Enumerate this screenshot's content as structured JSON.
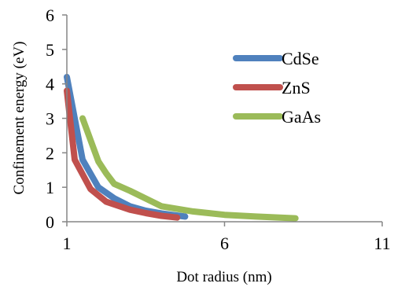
{
  "chart_data": {
    "type": "line",
    "xlabel": "Dot radius (nm)",
    "ylabel": "Confinement energy (eV)",
    "xlim": [
      1,
      11
    ],
    "ylim": [
      0,
      6
    ],
    "xticks": [
      1,
      6,
      11
    ],
    "yticks": [
      0,
      1,
      2,
      3,
      4,
      5,
      6
    ],
    "grid": false,
    "legend_position": "top-right",
    "series": [
      {
        "name": "CdSe",
        "color": "#4f81bd",
        "points": [
          [
            1.0,
            4.2
          ],
          [
            1.5,
            1.8
          ],
          [
            2.0,
            1.0
          ],
          [
            2.5,
            0.68
          ],
          [
            3.0,
            0.45
          ],
          [
            3.5,
            0.32
          ],
          [
            4.0,
            0.24
          ],
          [
            4.5,
            0.18
          ],
          [
            4.75,
            0.15
          ]
        ]
      },
      {
        "name": "ZnS",
        "color": "#c0504d",
        "points": [
          [
            1.0,
            3.8
          ],
          [
            1.25,
            1.8
          ],
          [
            1.75,
            0.95
          ],
          [
            2.25,
            0.58
          ],
          [
            3.0,
            0.35
          ],
          [
            3.5,
            0.25
          ],
          [
            4.0,
            0.17
          ],
          [
            4.5,
            0.12
          ]
        ]
      },
      {
        "name": "GaAs",
        "color": "#9bbb59",
        "points": [
          [
            1.5,
            3.0
          ],
          [
            2.0,
            1.75
          ],
          [
            2.25,
            1.4
          ],
          [
            2.5,
            1.1
          ],
          [
            3.0,
            0.9
          ],
          [
            4.0,
            0.45
          ],
          [
            5.0,
            0.3
          ],
          [
            6.0,
            0.2
          ],
          [
            7.0,
            0.15
          ],
          [
            8.25,
            0.1
          ]
        ]
      }
    ]
  }
}
